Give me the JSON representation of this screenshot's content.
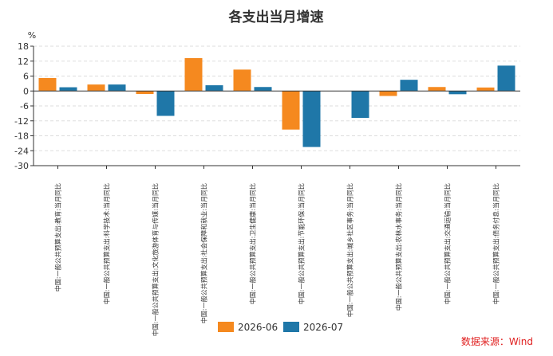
{
  "chart_data": {
    "type": "bar",
    "title": "各支出当月增速",
    "ylabel": "%",
    "ylim": [
      -30,
      18
    ],
    "yticks": [
      18,
      12,
      6,
      0,
      -6,
      -12,
      -18,
      -24,
      -30
    ],
    "grid": true,
    "legend_position": "bottom",
    "categories": [
      "中国:一般公共预算支出:教育:当月同比",
      "中国:一般公共预算支出:科学技术:当月同比",
      "中国:一般公共预算支出:文化旅游体育与传媒:当月同比",
      "中国:一般公共预算支出:社会保障和就业:当月同比",
      "中国:一般公共预算支出:卫生健康:当月同比",
      "中国:一般公共预算支出:节能环保:当月同比",
      "中国:一般公共预算支出:城乡社区事务:当月同比",
      "中国:一般公共预算支出:农林水事务:当月同比",
      "中国:一般公共预算支出:交通运输:当月同比",
      "中国:一般公共预算支出:债务付息:当月同比"
    ],
    "series": [
      {
        "name": "2026-06",
        "color": "#f5891f",
        "values": [
          5.2,
          2.6,
          -1.2,
          13.2,
          8.6,
          -15.5,
          0,
          -2.0,
          1.6,
          1.4
        ]
      },
      {
        "name": "2026-07",
        "color": "#1f77a8",
        "values": [
          1.5,
          2.6,
          -10.0,
          2.3,
          1.6,
          -22.5,
          -10.8,
          4.5,
          -1.3,
          10.2
        ]
      }
    ]
  },
  "source": "数据来源：Wind"
}
